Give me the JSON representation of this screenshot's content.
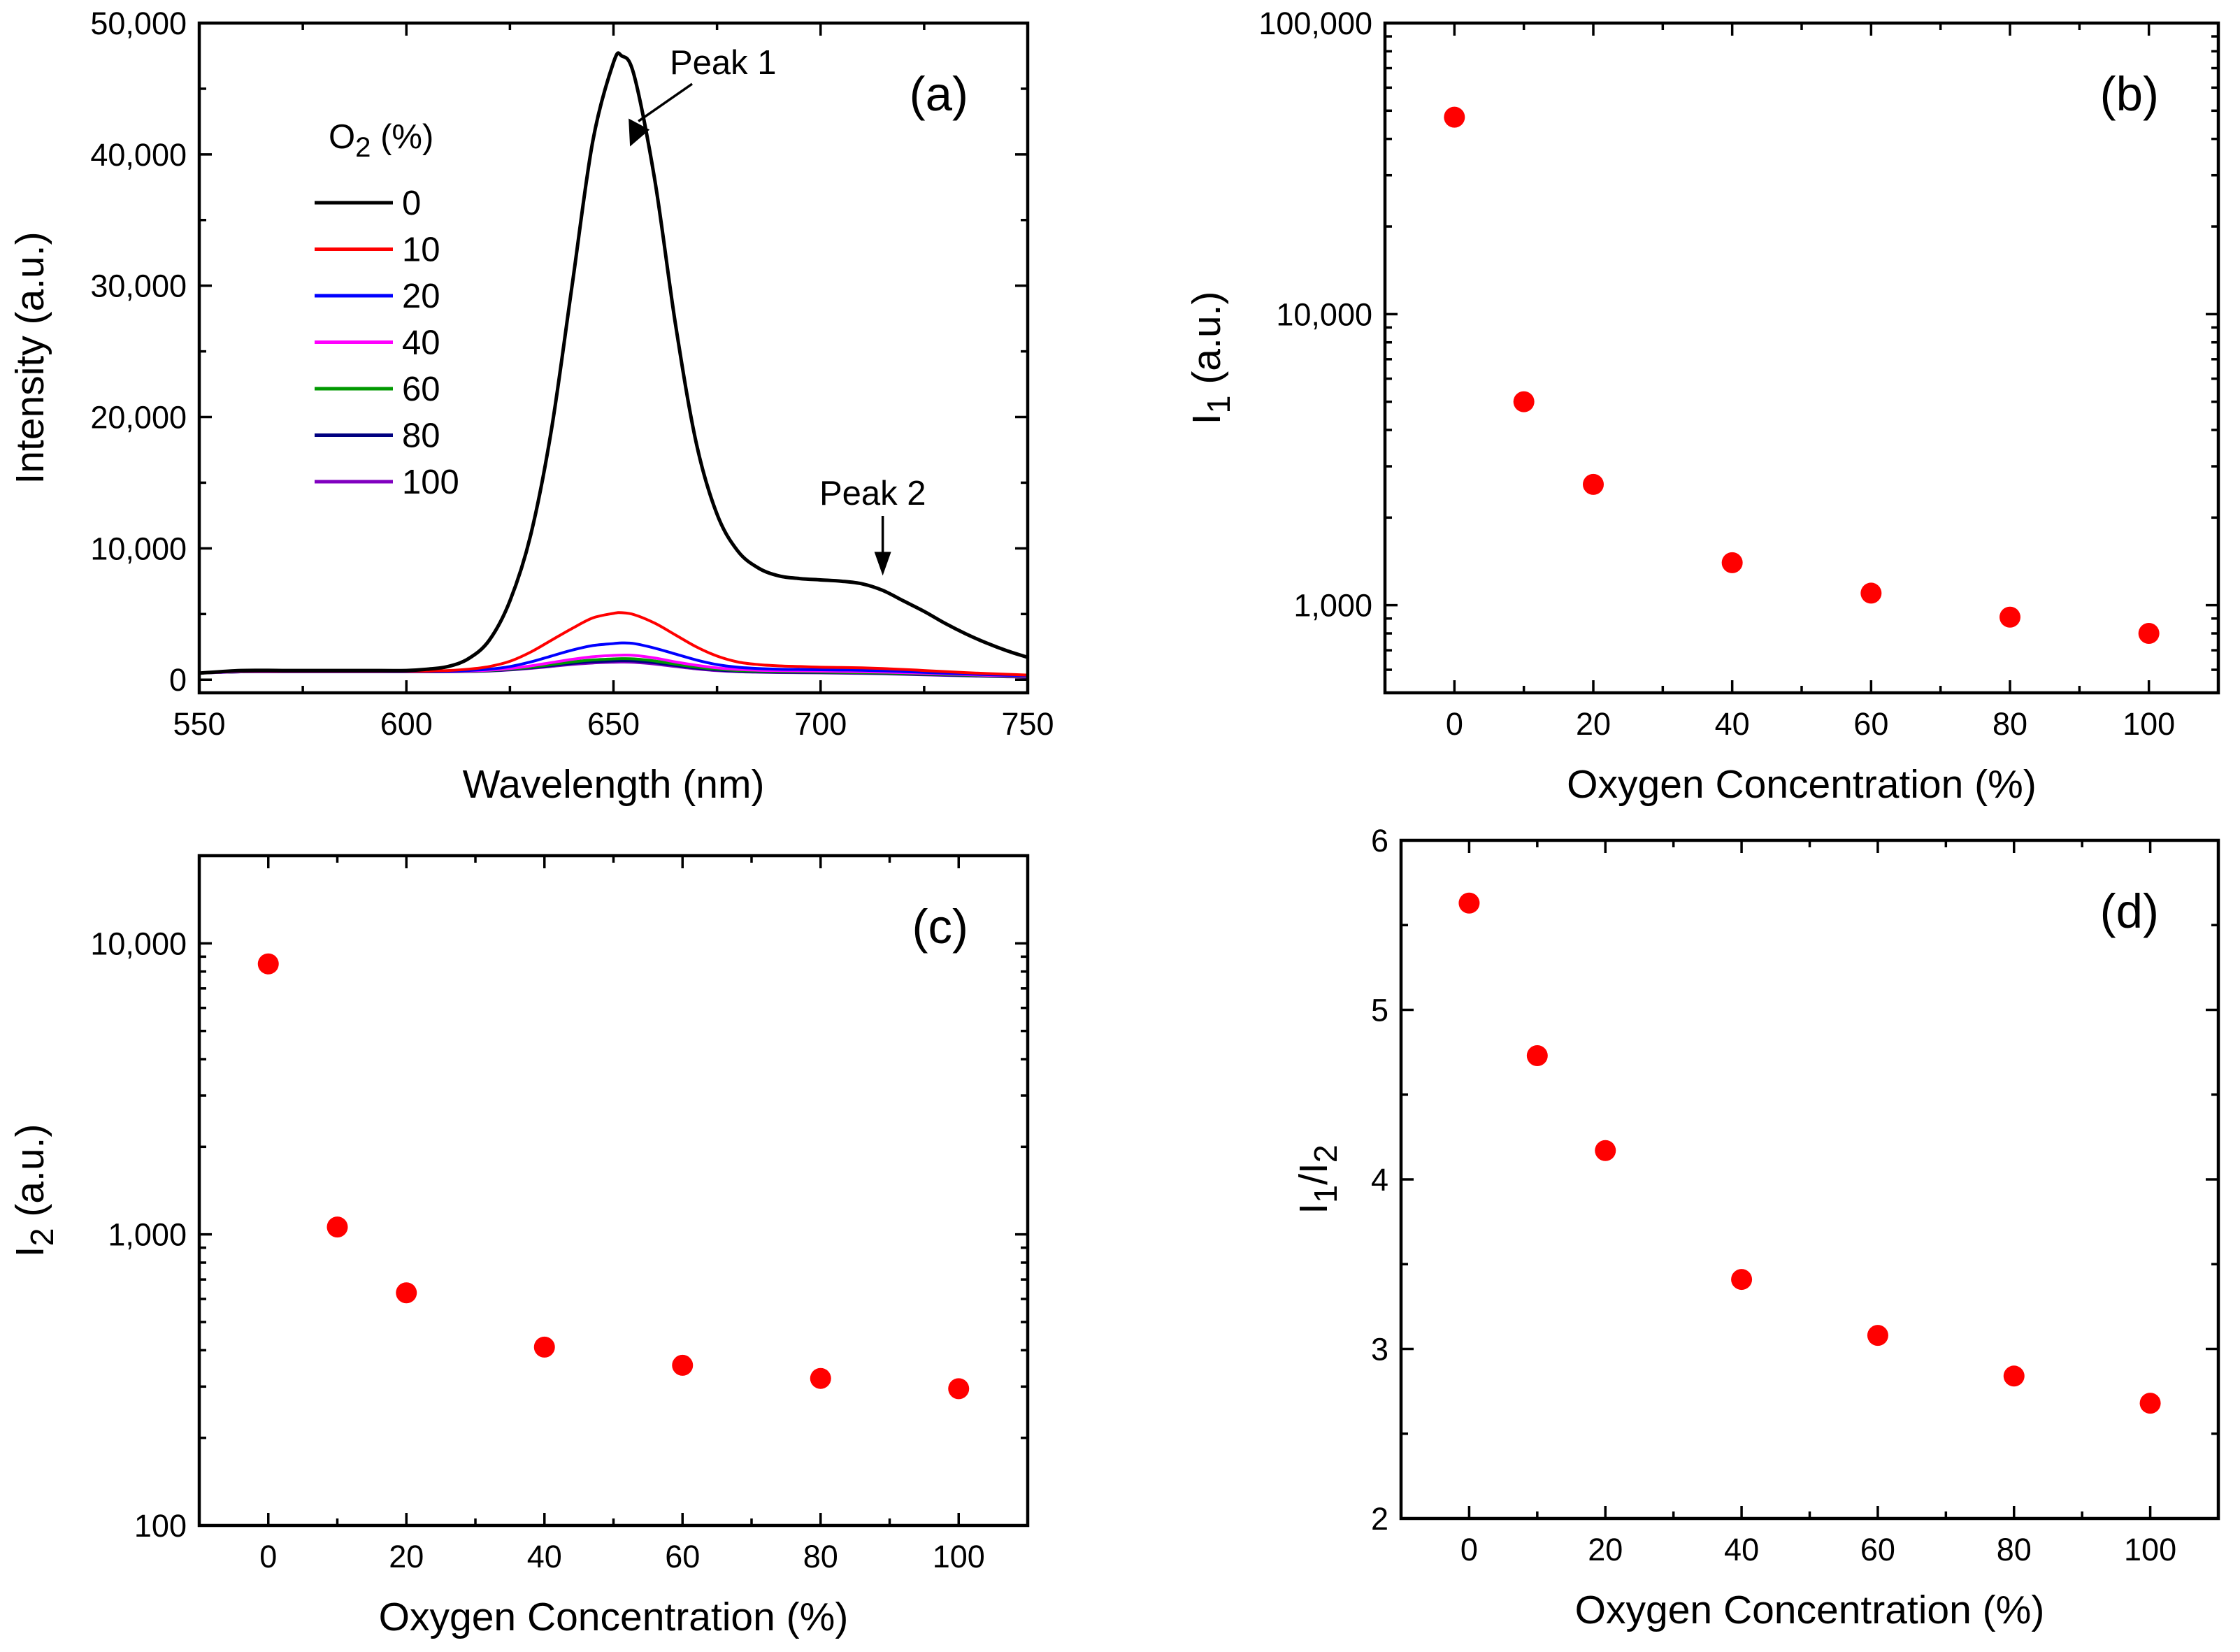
{
  "chart_data": [
    {
      "panel": "(a)",
      "type": "line",
      "xlabel": "Wavelength (nm)",
      "ylabel": "Intensity (a.u.)",
      "xlim": [
        550,
        750
      ],
      "ylim": [
        -1000,
        50000
      ],
      "xticks": [
        550,
        600,
        650,
        700,
        750
      ],
      "xtick_labels": [
        "550",
        "600",
        "650",
        "700",
        "750"
      ],
      "yticks": [
        0,
        10000,
        20000,
        30000,
        40000,
        50000
      ],
      "ytick_labels": [
        "0",
        "10,000",
        "20,000",
        "30,000",
        "40,000",
        "50,000"
      ],
      "legend_title": {
        "main": "O",
        "sub": "2",
        "rest": " (%)"
      },
      "legend_placement": "upper-left",
      "x": [
        550,
        560,
        570,
        580,
        590,
        600,
        605,
        610,
        615,
        620,
        625,
        630,
        635,
        640,
        645,
        650,
        652,
        655,
        660,
        665,
        670,
        675,
        680,
        685,
        690,
        695,
        700,
        705,
        710,
        715,
        720,
        725,
        730,
        735,
        740,
        745,
        750
      ],
      "series": [
        {
          "name": "0",
          "color": "#000000",
          "values": [
            500,
            700,
            700,
            700,
            700,
            700,
            800,
            1000,
            1600,
            3000,
            6000,
            11000,
            19000,
            30000,
            41000,
            47000,
            47500,
            46000,
            38000,
            27000,
            18000,
            12600,
            9800,
            8500,
            7900,
            7700,
            7600,
            7500,
            7300,
            6800,
            6000,
            5200,
            4300,
            3500,
            2800,
            2200,
            1700
          ]
        },
        {
          "name": "10",
          "color": "#ff0000",
          "values": [
            500,
            650,
            650,
            650,
            650,
            650,
            660,
            700,
            800,
            1000,
            1400,
            2100,
            3000,
            3900,
            4700,
            5050,
            5100,
            4950,
            4300,
            3400,
            2500,
            1800,
            1350,
            1150,
            1050,
            1000,
            950,
            930,
            900,
            850,
            780,
            700,
            620,
            540,
            470,
            410,
            350
          ]
        },
        {
          "name": "20",
          "color": "#0000ff",
          "values": [
            500,
            630,
            630,
            630,
            630,
            630,
            630,
            650,
            700,
            800,
            1000,
            1350,
            1800,
            2250,
            2600,
            2750,
            2800,
            2750,
            2400,
            1950,
            1500,
            1150,
            950,
            850,
            800,
            780,
            760,
            740,
            720,
            680,
            620,
            560,
            500,
            440,
            390,
            340,
            300
          ]
        },
        {
          "name": "40",
          "color": "#ff00ff",
          "values": [
            500,
            620,
            620,
            620,
            620,
            620,
            620,
            630,
            660,
            720,
            850,
            1050,
            1300,
            1550,
            1750,
            1850,
            1870,
            1850,
            1650,
            1350,
            1100,
            900,
            780,
            720,
            690,
            670,
            650,
            630,
            610,
            580,
            540,
            490,
            440,
            390,
            340,
            300,
            260
          ]
        },
        {
          "name": "60",
          "color": "#009900",
          "values": [
            500,
            610,
            610,
            610,
            610,
            610,
            610,
            620,
            640,
            700,
            800,
            950,
            1150,
            1350,
            1500,
            1580,
            1600,
            1580,
            1420,
            1180,
            960,
            800,
            700,
            650,
            620,
            600,
            580,
            560,
            540,
            510,
            470,
            430,
            390,
            350,
            300,
            260,
            230
          ]
        },
        {
          "name": "80",
          "color": "#000080",
          "values": [
            500,
            600,
            600,
            600,
            600,
            600,
            600,
            610,
            630,
            680,
            770,
            900,
            1070,
            1240,
            1370,
            1430,
            1450,
            1430,
            1290,
            1080,
            880,
            740,
            650,
            600,
            575,
            560,
            545,
            530,
            510,
            480,
            440,
            400,
            360,
            320,
            280,
            240,
            210
          ]
        },
        {
          "name": "100",
          "color": "#8000c0",
          "values": [
            500,
            600,
            600,
            600,
            600,
            600,
            600,
            605,
            620,
            660,
            740,
            860,
            1010,
            1160,
            1270,
            1330,
            1340,
            1320,
            1190,
            1000,
            820,
            690,
            610,
            570,
            545,
            530,
            515,
            500,
            480,
            450,
            410,
            370,
            330,
            290,
            250,
            220,
            190
          ]
        }
      ],
      "annotations": [
        {
          "text": "Peak 1",
          "x": 655,
          "y": 40500
        },
        {
          "text": "Peak 2",
          "x": 715,
          "y": 7500
        }
      ]
    },
    {
      "panel": "(b)",
      "type": "scatter",
      "xlabel": "Oxygen Concentration (%)",
      "ylabel": {
        "main": "I",
        "sub": "1",
        "rest": " (a.u.)"
      },
      "yscale": "log",
      "xlim": [
        -10,
        110
      ],
      "ylim": [
        500,
        100000
      ],
      "xticks": [
        0,
        20,
        40,
        60,
        80,
        100
      ],
      "xtick_labels": [
        "0",
        "20",
        "40",
        "60",
        "80",
        "100"
      ],
      "yticks": [
        1000,
        10000,
        100000
      ],
      "ytick_labels": [
        "1,000",
        "10,000",
        "100,000"
      ],
      "color": "#ff0000",
      "x": [
        0,
        10,
        20,
        40,
        60,
        80,
        100
      ],
      "y": [
        47500,
        5000,
        2600,
        1400,
        1100,
        910,
        800
      ]
    },
    {
      "panel": "(c)",
      "type": "scatter",
      "xlabel": "Oxygen Concentration (%)",
      "ylabel": {
        "main": "I",
        "sub": "2",
        "rest": " (a.u.)"
      },
      "yscale": "log",
      "xlim": [
        -10,
        110
      ],
      "ylim": [
        100,
        20000
      ],
      "xticks": [
        0,
        20,
        40,
        60,
        80,
        100
      ],
      "xtick_labels": [
        "0",
        "20",
        "40",
        "60",
        "80",
        "100"
      ],
      "yticks": [
        100,
        1000,
        10000
      ],
      "ytick_labels": [
        "100",
        "1,000",
        "10,000"
      ],
      "color": "#ff0000",
      "x": [
        0,
        10,
        20,
        40,
        60,
        80,
        100
      ],
      "y": [
        8500,
        1060,
        630,
        410,
        355,
        320,
        295
      ]
    },
    {
      "panel": "(d)",
      "type": "scatter",
      "xlabel": "Oxygen Concentration (%)",
      "ylabel": {
        "main": "I",
        "sub": "1",
        "sep": "/I",
        "sub2": "2"
      },
      "xlim": [
        -10,
        110
      ],
      "ylim": [
        2,
        6
      ],
      "xticks": [
        0,
        20,
        40,
        60,
        80,
        100
      ],
      "xtick_labels": [
        "0",
        "20",
        "40",
        "60",
        "80",
        "100"
      ],
      "yticks": [
        2,
        3,
        4,
        5,
        6
      ],
      "ytick_labels": [
        "2",
        "3",
        "4",
        "5",
        "6"
      ],
      "color": "#ff0000",
      "x": [
        0,
        10,
        20,
        40,
        60,
        80,
        100
      ],
      "y": [
        5.63,
        4.73,
        4.17,
        3.41,
        3.08,
        2.84,
        2.68
      ]
    }
  ]
}
